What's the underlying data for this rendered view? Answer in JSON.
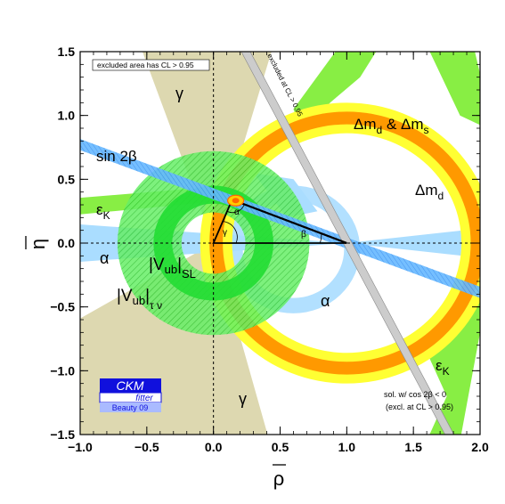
{
  "chart_data": {
    "type": "constraint-plot",
    "xlim": [
      -1.0,
      2.0
    ],
    "ylim": [
      -1.5,
      1.5
    ],
    "x_ticks": [
      "−1.0",
      "−0.5",
      "0.0",
      "0.5",
      "1.0",
      "1.5",
      "2.0"
    ],
    "x_tick_values": [
      -1.0,
      -0.5,
      0.0,
      0.5,
      1.0,
      1.5,
      2.0
    ],
    "y_ticks": [
      "−1.5",
      "−1.0",
      "−0.5",
      "0.0",
      "0.5",
      "1.0",
      "1.5"
    ],
    "y_tick_values": [
      -1.5,
      -1.0,
      -0.5,
      0.0,
      0.5,
      1.0,
      1.5
    ],
    "xlabel": "ρ",
    "ylabel": "η",
    "note": "excluded area has CL > 0.95",
    "sol_note_1": "sol. w/ cos 2β < 0",
    "sol_note_2": "(excl. at CL > 0.95)",
    "excluded_label": "excluded at CL > 0.95",
    "logo_top": "CKM",
    "logo_mid": "fitter",
    "logo_bottom": "Beauty 09",
    "apex": {
      "rho": 0.14,
      "eta": 0.34
    },
    "constraints": [
      {
        "name": "Δm_d",
        "center": [
          1.0,
          0.0
        ],
        "radius_inner": 0.86,
        "radius_outer": 1.1,
        "color": "#ffff33"
      },
      {
        "name": "Δm_d & Δm_s",
        "center": [
          1.0,
          0.0
        ],
        "radius_inner": 0.93,
        "radius_outer": 1.03,
        "color": "#ff9900"
      },
      {
        "name": "|V_ub|_SL",
        "center": [
          0.0,
          0.0
        ],
        "radius_inner": 0.31,
        "radius_outer": 0.45,
        "color": "#22dd33"
      },
      {
        "name": "|V_ub|_τν",
        "center": [
          0.0,
          0.0
        ],
        "radius_inner": 0.24,
        "radius_outer": 0.72,
        "color": "#33cc33"
      },
      {
        "name": "sin 2β",
        "angle_deg": 21.1,
        "color": "#55aaff"
      },
      {
        "name": "γ",
        "color": "#ddd8b0"
      },
      {
        "name": "α",
        "color": "#aaddff"
      },
      {
        "name": "ε_K",
        "color": "#88ee44"
      }
    ],
    "grid": false
  },
  "labels": {
    "sin2b": "sin 2β",
    "epsk_left": "εK",
    "alpha_left": "α",
    "vub_sl": "|Vub|SL",
    "vub_taunu": "|Vub|τν",
    "gamma_top": "γ",
    "gamma_bottom": "γ",
    "alpha_right": "α",
    "dmd": "Δmd",
    "dmd_dms": "Δmd & Δms",
    "epsk_right": "εK",
    "tri_alpha": "α",
    "tri_gamma": "γ",
    "tri_beta": "β"
  },
  "colors": {
    "gamma": "#ddd8b0",
    "alpha": "#aaddff",
    "epsk": "#88ee44",
    "yellow": "#ffff33",
    "orange": "#ff9900",
    "vub_sl": "#22dd33",
    "vub_taunu": "#33cc33",
    "sin2b": "#55aaff",
    "excl": "#cccccc",
    "logo": "#1010dd"
  }
}
